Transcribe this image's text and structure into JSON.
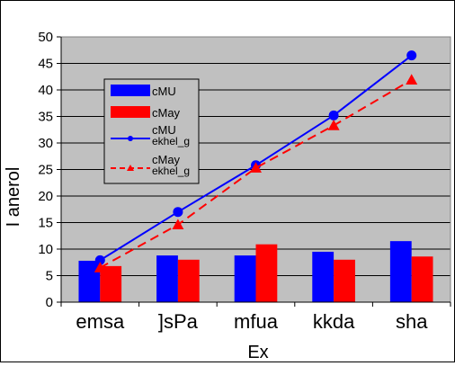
{
  "chart_data": {
    "type": "bar",
    "categories": [
      "emsa",
      "]sPa",
      "mfua",
      "kkda",
      "sha"
    ],
    "ylim": [
      0,
      50
    ],
    "ytick_step": 5,
    "xlabel": "Ex",
    "ylabel": "I anerol",
    "grid": true,
    "legend_position": "inside-left",
    "plot_background": "#c0c0c0",
    "bar_series": [
      {
        "name": "cMU",
        "values": [
          7.8,
          8.8,
          8.8,
          9.5,
          11.5
        ],
        "color": "#0000ff"
      },
      {
        "name": "cMay",
        "values": [
          6.8,
          8.0,
          10.9,
          8.0,
          8.6
        ],
        "color": "#ff0000"
      }
    ],
    "line_series": [
      {
        "name": "cMU",
        "name_line2": "ekhel_g",
        "values": [
          7.9,
          17.0,
          25.8,
          35.2,
          46.5
        ],
        "color": "#0000ff",
        "marker": "circle",
        "dash": "solid"
      },
      {
        "name": "cMay",
        "name_line2": "ekhel_g",
        "values": [
          6.5,
          14.6,
          25.3,
          33.3,
          41.9
        ],
        "color": "#ff0000",
        "marker": "triangle",
        "dash": "dashed"
      }
    ]
  }
}
